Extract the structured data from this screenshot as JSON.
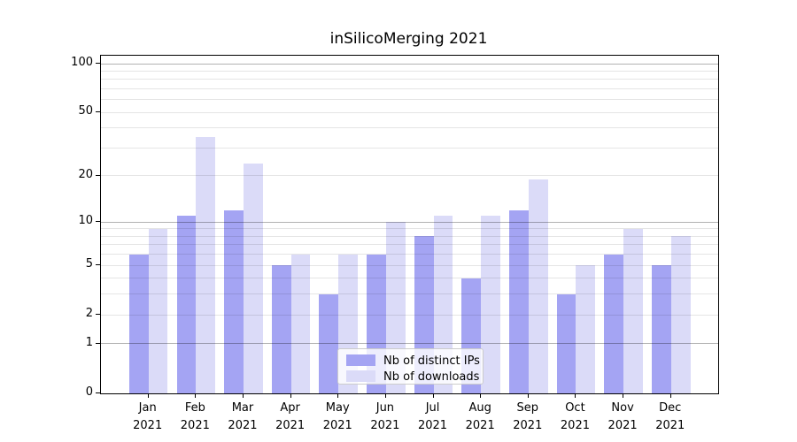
{
  "title": "inSilicoMerging 2021",
  "chart_data": {
    "type": "bar",
    "title": "inSilicoMerging 2021",
    "categories": [
      "Jan",
      "Feb",
      "Mar",
      "Apr",
      "May",
      "Jun",
      "Jul",
      "Aug",
      "Sep",
      "Oct",
      "Nov",
      "Dec"
    ],
    "x_tick_year": "2021",
    "series": [
      {
        "name": "Nb of distinct IPs",
        "color": "#a4a4f3",
        "values": [
          6,
          11,
          12,
          5,
          3,
          6,
          8,
          4,
          12,
          3,
          6,
          5
        ]
      },
      {
        "name": "Nb of downloads",
        "color": "#dbdbf8",
        "values": [
          9,
          35,
          24,
          6,
          6,
          10,
          11,
          11,
          19,
          5,
          9,
          8
        ]
      }
    ],
    "y_axis": {
      "scale": "log10(1+y)",
      "tick_values": [
        0,
        1,
        2,
        5,
        10,
        20,
        50,
        100
      ],
      "tick_labels": [
        "0",
        "1",
        "2",
        "5",
        "10",
        "20",
        "50",
        "100"
      ],
      "major_gridlines": [
        1,
        10,
        100
      ],
      "labeled_minor_gridlines": [
        2,
        5,
        20,
        50
      ],
      "minor_gridlines": [
        3,
        4,
        6,
        7,
        8,
        9,
        30,
        40,
        60,
        70,
        80,
        90
      ],
      "range": [
        0,
        112
      ]
    },
    "grid": true,
    "legend_position": "lower center"
  }
}
